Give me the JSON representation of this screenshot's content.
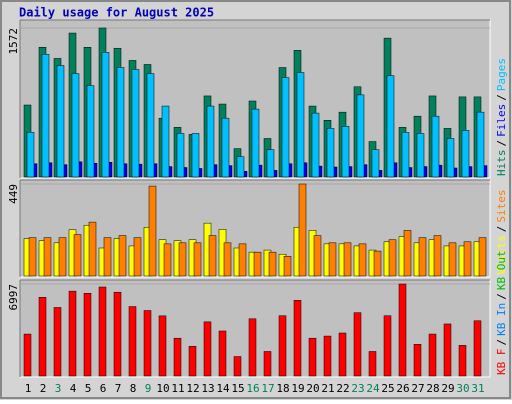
{
  "chart_data": {
    "type": "bar",
    "title": "Daily usage for August 2025",
    "categories": [
      "1",
      "2",
      "3",
      "4",
      "5",
      "6",
      "7",
      "8",
      "9",
      "10",
      "11",
      "12",
      "13",
      "14",
      "15",
      "16",
      "17",
      "18",
      "19",
      "20",
      "21",
      "22",
      "23",
      "24",
      "25",
      "26",
      "27",
      "28",
      "29",
      "30",
      "31"
    ],
    "category_colors": [
      "#000000",
      "#000000",
      "#00805c",
      "#000000",
      "#000000",
      "#000000",
      "#000000",
      "#000000",
      "#00805c",
      "#000000",
      "#000000",
      "#000000",
      "#000000",
      "#000000",
      "#000000",
      "#00805c",
      "#00805c",
      "#000000",
      "#000000",
      "#000000",
      "#000000",
      "#000000",
      "#00805c",
      "#00805c",
      "#000000",
      "#000000",
      "#000000",
      "#000000",
      "#000000",
      "#00805c",
      "#00805c"
    ],
    "legend_separator": "/",
    "panels": [
      {
        "ylim": [
          0,
          1572
        ],
        "yticks": [
          1572
        ],
        "series": [
          {
            "name": "Hits",
            "color": "#00805c",
            "values": [
              765,
              1370,
              1253,
              1519,
              1370,
              1572,
              1360,
              1232,
              1190,
              627,
              531,
              457,
              860,
              775,
              308,
              807,
              414,
              1158,
              1338,
              754,
              605,
              690,
              956,
              382,
              1466,
              531,
              648,
              860,
              520,
              850,
              850
            ]
          },
          {
            "name": "Files",
            "color": "#0000ff",
            "values": [
              150,
              160,
              140,
              170,
              155,
              165,
              150,
              145,
              150,
              120,
              110,
              100,
              140,
              130,
              70,
              135,
              80,
              150,
              160,
              125,
              115,
              120,
              140,
              80,
              160,
              110,
              120,
              135,
              105,
              120,
              130
            ]
          },
          {
            "name": "Pages",
            "color": "#00c0ff",
            "values": [
              478,
              1296,
              1179,
              1094,
              967,
              1317,
              1158,
              1137,
              1094,
              754,
              467,
              467,
              754,
              627,
              223,
              722,
              297,
              1052,
              1105,
              680,
              520,
              541,
              871,
              297,
              1073,
              478,
              467,
              648,
              414,
              499,
              690
            ]
          }
        ]
      },
      {
        "ylim": [
          0,
          449
        ],
        "yticks": [
          449
        ],
        "series": [
          {
            "name": "Visits",
            "color": "#ffff00",
            "values": [
              185,
              175,
              165,
              228,
              250,
              140,
              185,
              150,
              240,
              180,
              175,
              180,
              260,
              230,
              140,
              120,
              130,
              110,
              240,
              225,
              160,
              160,
              150,
              130,
              170,
              195,
              165,
              180,
              150,
              150,
              170
            ]
          },
          {
            "name": "Sites",
            "color": "#ff8000",
            "values": [
              190,
              190,
              190,
              205,
              265,
              190,
              200,
              190,
              439,
              160,
              165,
              165,
              200,
              165,
              160,
              120,
              120,
              100,
              449,
              200,
              165,
              165,
              160,
              125,
              180,
              225,
              190,
              200,
              165,
              170,
              190
            ]
          }
        ]
      },
      {
        "ylim": [
          0,
          6997
        ],
        "yticks": [
          6997
        ],
        "series": [
          {
            "name": "KB F",
            "color": "#ff0000",
            "values": [
              3230,
              6000,
              5230,
              6460,
              6300,
              6770,
              6380,
              5300,
              5000,
              4600,
              2920,
              2310,
              4150,
              3460,
              1540,
              4380,
              1920,
              4610,
              5770,
              2920,
              3080,
              3310,
              4840,
              1920,
              4610,
              6997,
              2460,
              3230,
              3990,
              2380,
              4230
            ]
          },
          {
            "name": "KB In",
            "color": "#0080ff",
            "values": [
              null,
              null,
              null,
              null,
              null,
              null,
              null,
              null,
              null,
              null,
              null,
              null,
              null,
              null,
              null,
              null,
              null,
              null,
              null,
              null,
              null,
              null,
              null,
              null,
              null,
              null,
              null,
              null,
              null,
              null,
              null
            ]
          },
          {
            "name": "KB Out",
            "color": "#00c000",
            "values": [
              null,
              null,
              null,
              null,
              null,
              null,
              null,
              null,
              null,
              null,
              null,
              null,
              null,
              null,
              null,
              null,
              null,
              null,
              null,
              null,
              null,
              null,
              null,
              null,
              null,
              null,
              null,
              null,
              null,
              null,
              null
            ]
          }
        ]
      }
    ]
  }
}
